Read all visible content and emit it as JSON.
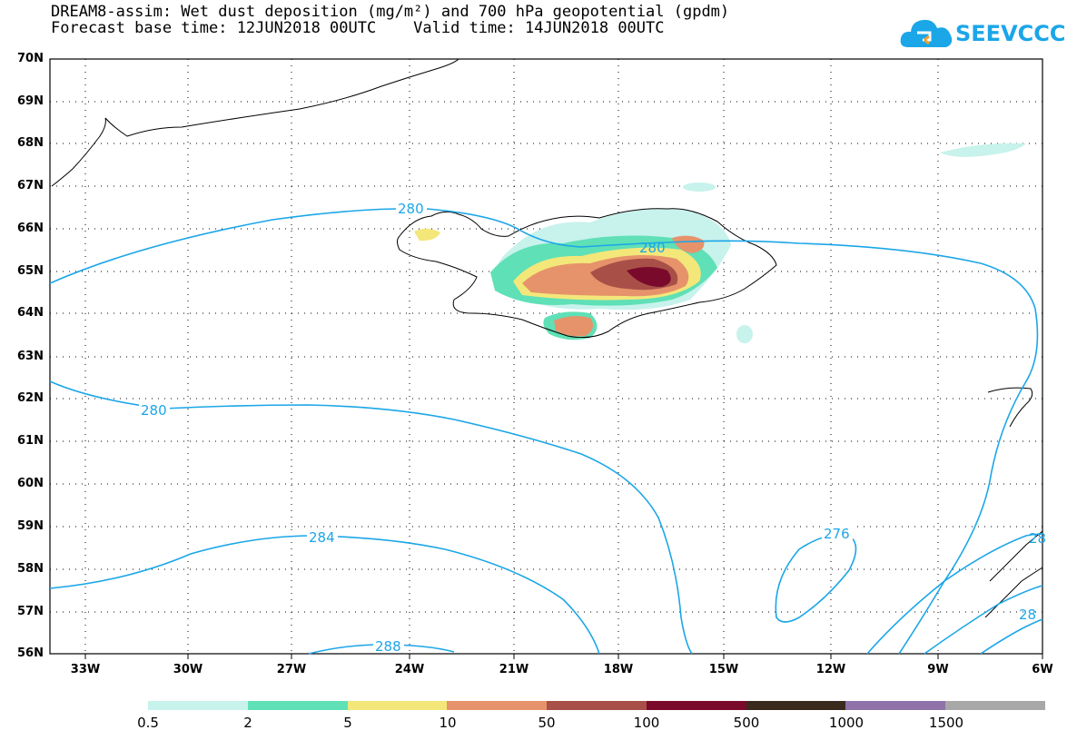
{
  "header": {
    "title_line1": "DREAM8-assim: Wet dust deposition (mg/m²) and 700 hPa geopotential (gpdm)",
    "title_line2": "Forecast base time: 12JUN2018 00UTC    Valid time: 14JUN2018 00UTC"
  },
  "logo": {
    "text": "SEEVCCC"
  },
  "map": {
    "lat_labels": [
      "70N",
      "69N",
      "68N",
      "67N",
      "66N",
      "65N",
      "64N",
      "63N",
      "62N",
      "61N",
      "60N",
      "59N",
      "58N",
      "57N",
      "56N"
    ],
    "lon_labels": [
      "33W",
      "30W",
      "27W",
      "24W",
      "21W",
      "18W",
      "15W",
      "12W",
      "9W",
      "6W"
    ],
    "contour_labels": {
      "c280_north": "280",
      "c280_iceland": "280",
      "c280_south": "280",
      "c284": "284",
      "c288": "288",
      "c276": "276",
      "c28_edge_top": "28",
      "c28_edge_bottom": "28"
    },
    "colors": {
      "contour": "#1ba6e8",
      "coastline": "#000000",
      "grid": "#000000"
    }
  },
  "legend": {
    "labels": [
      "0.5",
      "2",
      "5",
      "10",
      "50",
      "100",
      "500",
      "1000",
      "1500"
    ],
    "colors": [
      "#c8f2ec",
      "#5fe0b7",
      "#f3e77a",
      "#e6936b",
      "#a85048",
      "#7a0a2c",
      "#3a2a1e",
      "#8e72a8",
      "#a8a8a8"
    ]
  }
}
